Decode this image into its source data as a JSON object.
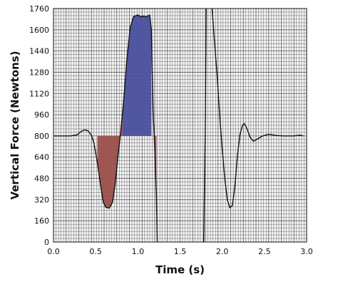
{
  "chart_data": {
    "type": "line",
    "title": "",
    "xlabel": "Time (s)",
    "ylabel": "Vertical Force (Newtons)",
    "xlim": [
      0,
      3.0
    ],
    "ylim": [
      0,
      1760
    ],
    "grid": true,
    "x_ticks": [
      0.0,
      0.5,
      1.0,
      1.5,
      2.0,
      2.5,
      3.0
    ],
    "x_tick_labels": [
      "0.0",
      "0.5",
      "1.0",
      "1.5",
      "2.0",
      "2.5",
      "3.0"
    ],
    "y_ticks": [
      0,
      160,
      320,
      480,
      640,
      800,
      960,
      1120,
      1280,
      1440,
      1600,
      1760
    ],
    "y_tick_labels": [
      "0",
      "160",
      "320",
      "480",
      "640",
      "800",
      "960",
      "1120",
      "1280",
      "1440",
      "1600",
      "1760"
    ],
    "baseline": 800,
    "colors": {
      "line": "#111111",
      "grid": "#5a5a5a",
      "negative_fill": "#9b4f4a",
      "positive_fill": "#4a4f9e"
    },
    "series": [
      {
        "points": [
          [
            0.0,
            800
          ],
          [
            0.2,
            800
          ],
          [
            0.28,
            808
          ],
          [
            0.33,
            835
          ],
          [
            0.37,
            846
          ],
          [
            0.41,
            838
          ],
          [
            0.45,
            805
          ],
          [
            0.48,
            745
          ],
          [
            0.52,
            600
          ],
          [
            0.56,
            420
          ],
          [
            0.59,
            300
          ],
          [
            0.62,
            262
          ],
          [
            0.66,
            255
          ],
          [
            0.7,
            300
          ],
          [
            0.73,
            430
          ],
          [
            0.76,
            620
          ],
          [
            0.79,
            790
          ],
          [
            0.83,
            1050
          ],
          [
            0.87,
            1380
          ],
          [
            0.91,
            1620
          ],
          [
            0.95,
            1700
          ],
          [
            1.0,
            1712
          ],
          [
            1.03,
            1700
          ],
          [
            1.07,
            1703
          ],
          [
            1.1,
            1698
          ],
          [
            1.14,
            1712
          ],
          [
            1.16,
            1600
          ],
          [
            1.18,
            1000
          ],
          [
            1.2,
            700
          ],
          [
            1.22,
            350
          ],
          [
            1.23,
            0
          ]
        ]
      },
      {
        "points": [
          [
            1.78,
            0
          ],
          [
            1.8,
            900
          ],
          [
            1.81,
            1760
          ]
        ]
      },
      {
        "points": [
          [
            1.88,
            1760
          ],
          [
            1.9,
            1580
          ],
          [
            1.94,
            1250
          ],
          [
            1.97,
            950
          ],
          [
            2.0,
            700
          ],
          [
            2.03,
            480
          ],
          [
            2.06,
            320
          ],
          [
            2.09,
            258
          ],
          [
            2.12,
            275
          ],
          [
            2.15,
            420
          ],
          [
            2.18,
            650
          ],
          [
            2.21,
            810
          ],
          [
            2.24,
            880
          ],
          [
            2.26,
            893
          ],
          [
            2.29,
            860
          ],
          [
            2.33,
            790
          ],
          [
            2.37,
            760
          ],
          [
            2.42,
            778
          ],
          [
            2.48,
            800
          ],
          [
            2.55,
            812
          ],
          [
            2.63,
            804
          ],
          [
            2.72,
            800
          ],
          [
            2.85,
            800
          ],
          [
            2.92,
            806
          ],
          [
            2.96,
            800
          ]
        ]
      }
    ],
    "shaded_regions": [
      {
        "fill": "negative_fill",
        "x_start": 0.52,
        "x_end": 0.82,
        "from": "curve",
        "to": "baseline"
      },
      {
        "fill": "positive_fill",
        "x_start": 0.82,
        "x_end": 1.16,
        "from": "baseline",
        "to": "curve"
      },
      {
        "fill": "negative_fill",
        "x_start": 1.2,
        "x_end": 1.22,
        "from": "curve",
        "to": "baseline"
      }
    ]
  }
}
